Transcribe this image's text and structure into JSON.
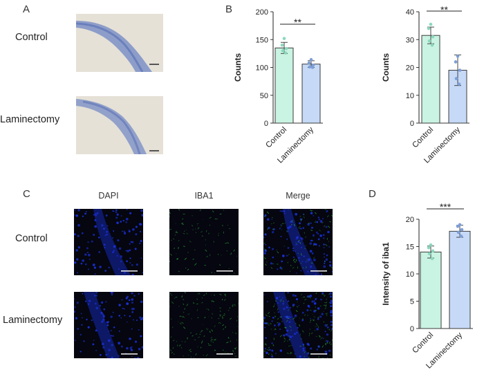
{
  "panels": {
    "A": {
      "letter": "A",
      "rows": [
        {
          "label": "Control"
        },
        {
          "label": "Laminectomy"
        }
      ]
    },
    "B": {
      "letter": "B"
    },
    "C": {
      "letter": "C",
      "columns": [
        "DAPI",
        "IBA1",
        "Merge"
      ],
      "rows": [
        {
          "label": "Control"
        },
        {
          "label": "Laminectomy"
        }
      ]
    },
    "D": {
      "letter": "D"
    }
  },
  "colors": {
    "control_fill": "#c9f3e2",
    "control_stroke": "#3e3e3e",
    "control_points": "#8ad8bd",
    "laminectomy_fill": "#c6d9f6",
    "laminectomy_points": "#7d9fd8",
    "dapi": "#1a2fd0",
    "iba1": "#2fae3a",
    "histology_bg": "#dcd9cf",
    "histology_stain": "#6f86c4"
  },
  "chart_data": [
    {
      "id": "B-left",
      "type": "bar",
      "categories": [
        "Control",
        "Laminectomy"
      ],
      "values": [
        135,
        106
      ],
      "errors": [
        10,
        6
      ],
      "points": [
        [
          152,
          140,
          134,
          130,
          126
        ],
        [
          114,
          108,
          104,
          101,
          100
        ]
      ],
      "ylabel": "Counts",
      "ylim": [
        0,
        200
      ],
      "yticks": [
        "0",
        "50",
        "100",
        "150",
        "200"
      ],
      "significance": "**"
    },
    {
      "id": "B-right",
      "type": "bar",
      "categories": [
        "Control",
        "Laminectomy"
      ],
      "values": [
        31.5,
        19
      ],
      "errors": [
        3,
        5.5
      ],
      "points": [
        [
          35.5,
          34,
          31,
          29.5,
          28
        ],
        [
          24,
          22,
          19,
          16,
          14
        ]
      ],
      "ylabel": "Counts",
      "ylim": [
        0,
        40
      ],
      "yticks": [
        "0",
        "10",
        "20",
        "30",
        "40"
      ],
      "significance": "**"
    },
    {
      "id": "D",
      "type": "bar",
      "categories": [
        "Control",
        "Laminectomy"
      ],
      "values": [
        14,
        17.8
      ],
      "errors": [
        1.1,
        1.1
      ],
      "points": [
        [
          15.3,
          14.8,
          14.2,
          13.7,
          12.8
        ],
        [
          19,
          18.7,
          18.1,
          17.6,
          16.9
        ]
      ],
      "ylabel": "Intensity of iba1",
      "ylim": [
        0,
        20
      ],
      "yticks": [
        "0",
        "5",
        "10",
        "15",
        "20"
      ],
      "significance": "***"
    }
  ]
}
